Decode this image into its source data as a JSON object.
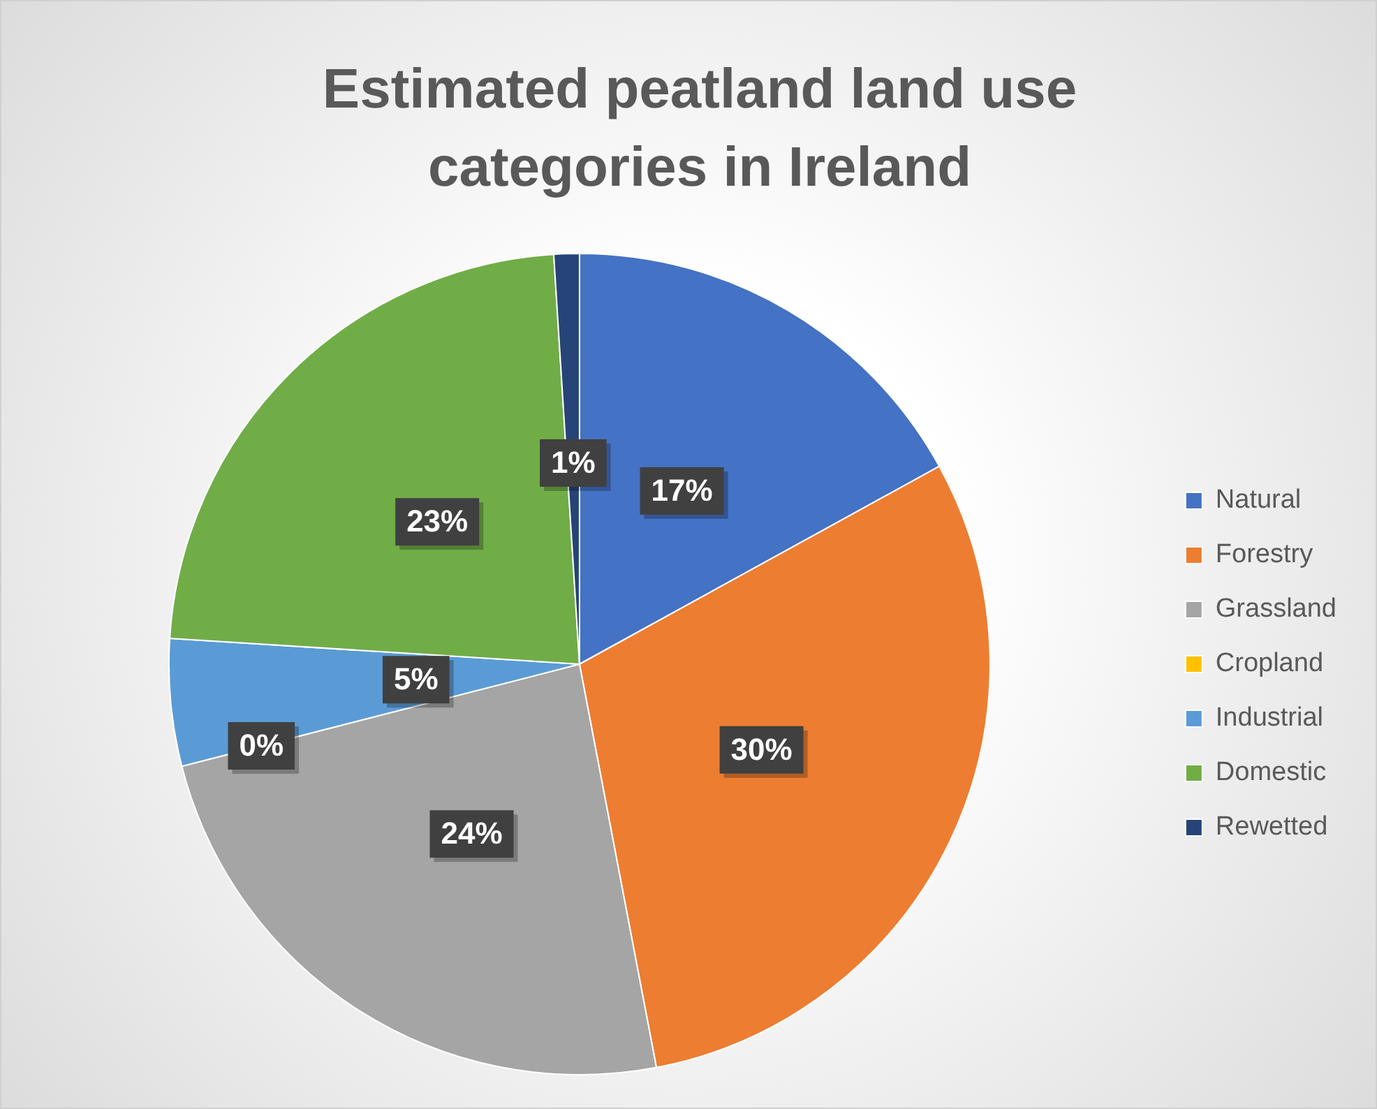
{
  "chart_data": {
    "type": "pie",
    "title": "Estimated peatland land use categories in Ireland",
    "categories": [
      "Natural",
      "Forestry",
      "Grassland",
      "Cropland",
      "Industrial",
      "Domestic",
      "Rewetted"
    ],
    "values": [
      17,
      30,
      24,
      0,
      5,
      23,
      1
    ],
    "colors": [
      "#4472c4",
      "#ed7d31",
      "#a5a5a5",
      "#ffc000",
      "#5b9bd5",
      "#70ad47",
      "#264478"
    ],
    "value_labels": [
      "17%",
      "30%",
      "24%",
      "0%",
      "5%",
      "23%",
      "1%"
    ],
    "legend": "right"
  }
}
